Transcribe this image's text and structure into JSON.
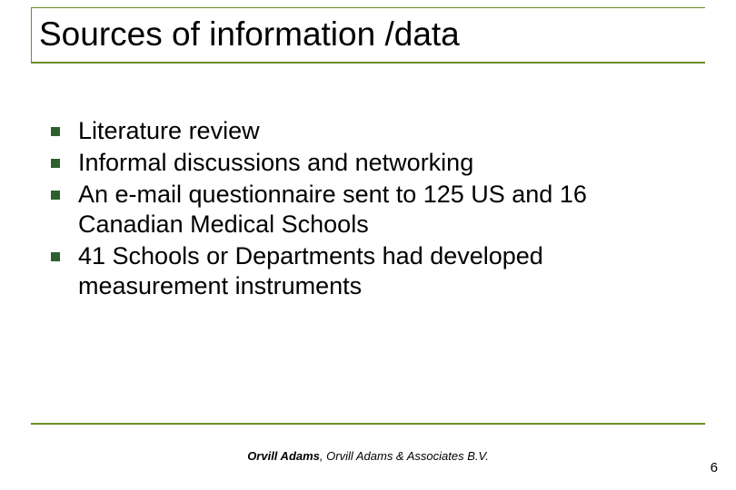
{
  "colors": {
    "accent": "#6b8e23",
    "bullet": "#2f5f2f",
    "text": "#000000",
    "footer": "#000000",
    "background": "#ffffff"
  },
  "title": "Sources of information /data",
  "bullets": [
    "Literature review",
    "Informal discussions and networking",
    "An e-mail questionnaire sent to 125 US and 16 Canadian Medical Schools",
    "41 Schools or Departments had developed measurement instruments"
  ],
  "footer": {
    "author": "Orvill Adams",
    "affiliation": ", Orvill Adams & Associates B.V."
  },
  "page_number": "6",
  "title_fontsize": 37,
  "body_fontsize": 27,
  "footer_fontsize": 13
}
